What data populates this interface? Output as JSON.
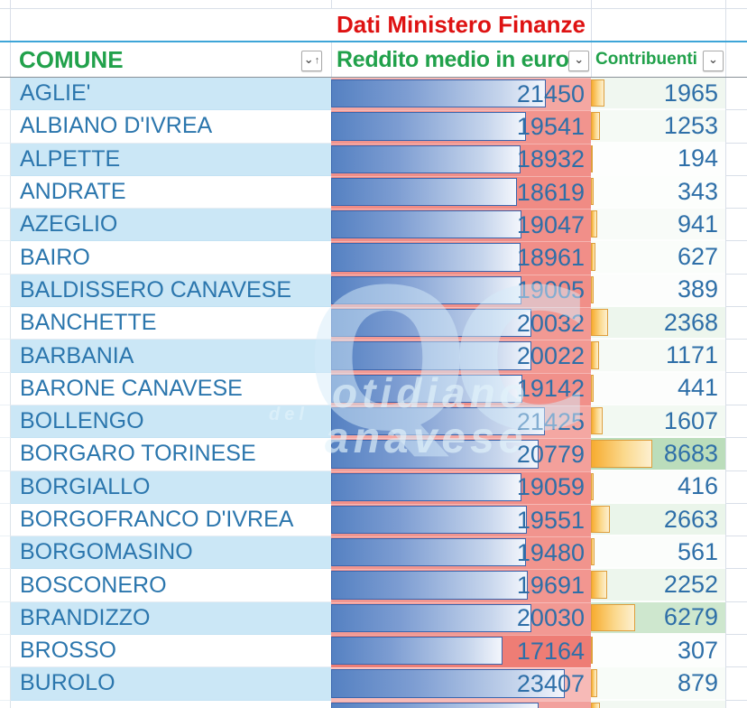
{
  "banner": {
    "text": "Dati Ministero Finanze"
  },
  "columns": {
    "comune": {
      "label": "COMUNE"
    },
    "reddito": {
      "label": "Reddito medio in euro"
    },
    "contribuenti": {
      "label": "Contribuenti"
    }
  },
  "icons": {
    "chevron_down": "⌄",
    "sort_ascending": "↑"
  },
  "rows": [
    {
      "comune": "AGLIE'",
      "reddito": 21450,
      "contribuenti": 1965
    },
    {
      "comune": "ALBIANO D'IVREA",
      "reddito": 19541,
      "contribuenti": 1253
    },
    {
      "comune": "ALPETTE",
      "reddito": 18932,
      "contribuenti": 194
    },
    {
      "comune": "ANDRATE",
      "reddito": 18619,
      "contribuenti": 343
    },
    {
      "comune": "AZEGLIO",
      "reddito": 19047,
      "contribuenti": 941
    },
    {
      "comune": "BAIRO",
      "reddito": 18961,
      "contribuenti": 627
    },
    {
      "comune": "BALDISSERO CANAVESE",
      "reddito": 19005,
      "contribuenti": 389
    },
    {
      "comune": "BANCHETTE",
      "reddito": 20032,
      "contribuenti": 2368
    },
    {
      "comune": "BARBANIA",
      "reddito": 20022,
      "contribuenti": 1171
    },
    {
      "comune": "BARONE CANAVESE",
      "reddito": 19142,
      "contribuenti": 441
    },
    {
      "comune": "BOLLENGO",
      "reddito": 21425,
      "contribuenti": 1607
    },
    {
      "comune": "BORGARO TORINESE",
      "reddito": 20779,
      "contribuenti": 8683
    },
    {
      "comune": "BORGIALLO",
      "reddito": 19059,
      "contribuenti": 416
    },
    {
      "comune": "BORGOFRANCO D'IVREA",
      "reddito": 19551,
      "contribuenti": 2663
    },
    {
      "comune": "BORGOMASINO",
      "reddito": 19480,
      "contribuenti": 561
    },
    {
      "comune": "BOSCONERO",
      "reddito": 19691,
      "contribuenti": 2252
    },
    {
      "comune": "BRANDIZZO",
      "reddito": 20030,
      "contribuenti": 6279
    },
    {
      "comune": "BROSSO",
      "reddito": 17164,
      "contribuenti": 307
    },
    {
      "comune": "BUROLO",
      "reddito": 23407,
      "contribuenti": 879
    }
  ],
  "scales": {
    "reddito_bar_max": 26000,
    "reddito_bg": {
      "low_value": 17000,
      "high_value": 26000,
      "low_color": "#EE7B73",
      "high_color": "#FAD4D3"
    },
    "contribuenti_bar_max": 19000,
    "contribuenti_bg": {
      "max_value": 23000,
      "low_color": "#FFFFFF",
      "high_color": "#4CA64C"
    }
  },
  "watermark": {
    "monogram": "QC",
    "word_top": "otidiano",
    "word_mid": "del",
    "word_bottom": "anavese"
  },
  "theme": {
    "header_green": "#21A14B",
    "banner_red": "#DE1212",
    "band_blue": "#CBE7F6",
    "text_blue": "#2B76AD",
    "bar_blue_border": "#3A66AE",
    "bar_yellow_border": "#DE9E3C",
    "divider_blue": "#3EA5D8"
  }
}
